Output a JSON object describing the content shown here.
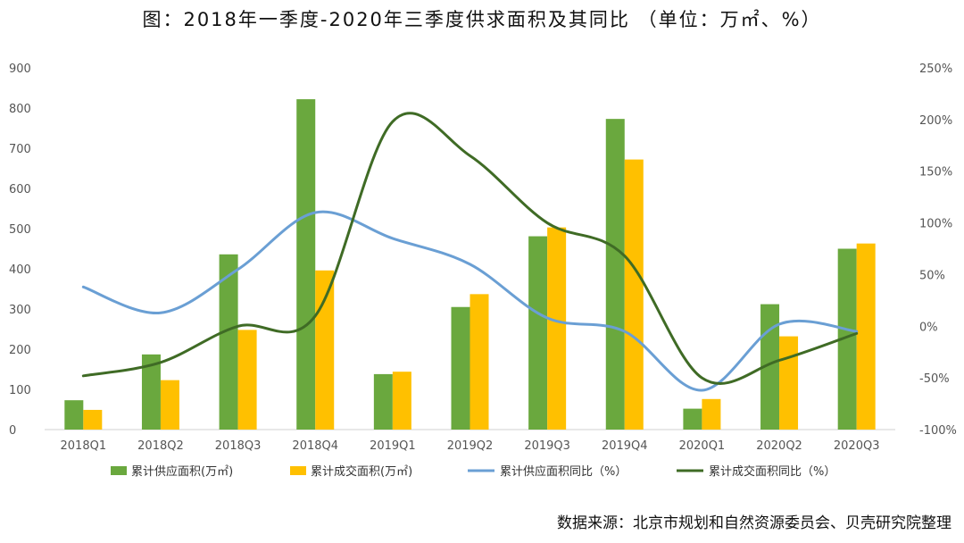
{
  "title": "图：2018年一季度-2020年三季度供求面积及其同比  （单位：万㎡、%）",
  "source": "数据来源：北京市规划和自然资源委员会、贝壳研究院整理",
  "colors": {
    "supply_bar": "#6aa83e",
    "deal_bar": "#ffc000",
    "supply_yoy_line": "#6a9fd4",
    "deal_yoy_line": "#3f6b25"
  },
  "chart_data": {
    "type": "bar",
    "categories": [
      "2018Q1",
      "2018Q2",
      "2018Q3",
      "2018Q4",
      "2019Q1",
      "2019Q2",
      "2019Q3",
      "2019Q4",
      "2020Q1",
      "2020Q2",
      "2020Q3"
    ],
    "series": [
      {
        "name": "累计供应面积(万㎡)",
        "kind": "bar",
        "axis": "left",
        "values": [
          73,
          187,
          436,
          822,
          138,
          305,
          481,
          773,
          52,
          312,
          450
        ]
      },
      {
        "name": "累计成交面积(万㎡)",
        "kind": "bar",
        "axis": "left",
        "values": [
          49,
          123,
          248,
          396,
          144,
          337,
          503,
          672,
          76,
          232,
          463
        ]
      },
      {
        "name": "累计供应面积同比（%）",
        "kind": "line",
        "axis": "right",
        "values": [
          38,
          13,
          55,
          110,
          85,
          60,
          8,
          -5,
          -62,
          2,
          -5
        ]
      },
      {
        "name": "累计成交面积同比（%）",
        "kind": "line",
        "axis": "right",
        "values": [
          -48,
          -35,
          0,
          10,
          198,
          165,
          100,
          68,
          -50,
          -33,
          -7
        ]
      }
    ],
    "left_axis": {
      "min": 0,
      "max": 900,
      "ticks": [
        "0",
        "100",
        "200",
        "300",
        "400",
        "500",
        "600",
        "700",
        "800",
        "900"
      ]
    },
    "right_axis": {
      "min": -100,
      "max": 250,
      "ticks": [
        "-100%",
        "-50%",
        "0%",
        "50%",
        "100%",
        "150%",
        "200%",
        "250%"
      ]
    },
    "grid": false,
    "legend_position": "bottom"
  }
}
